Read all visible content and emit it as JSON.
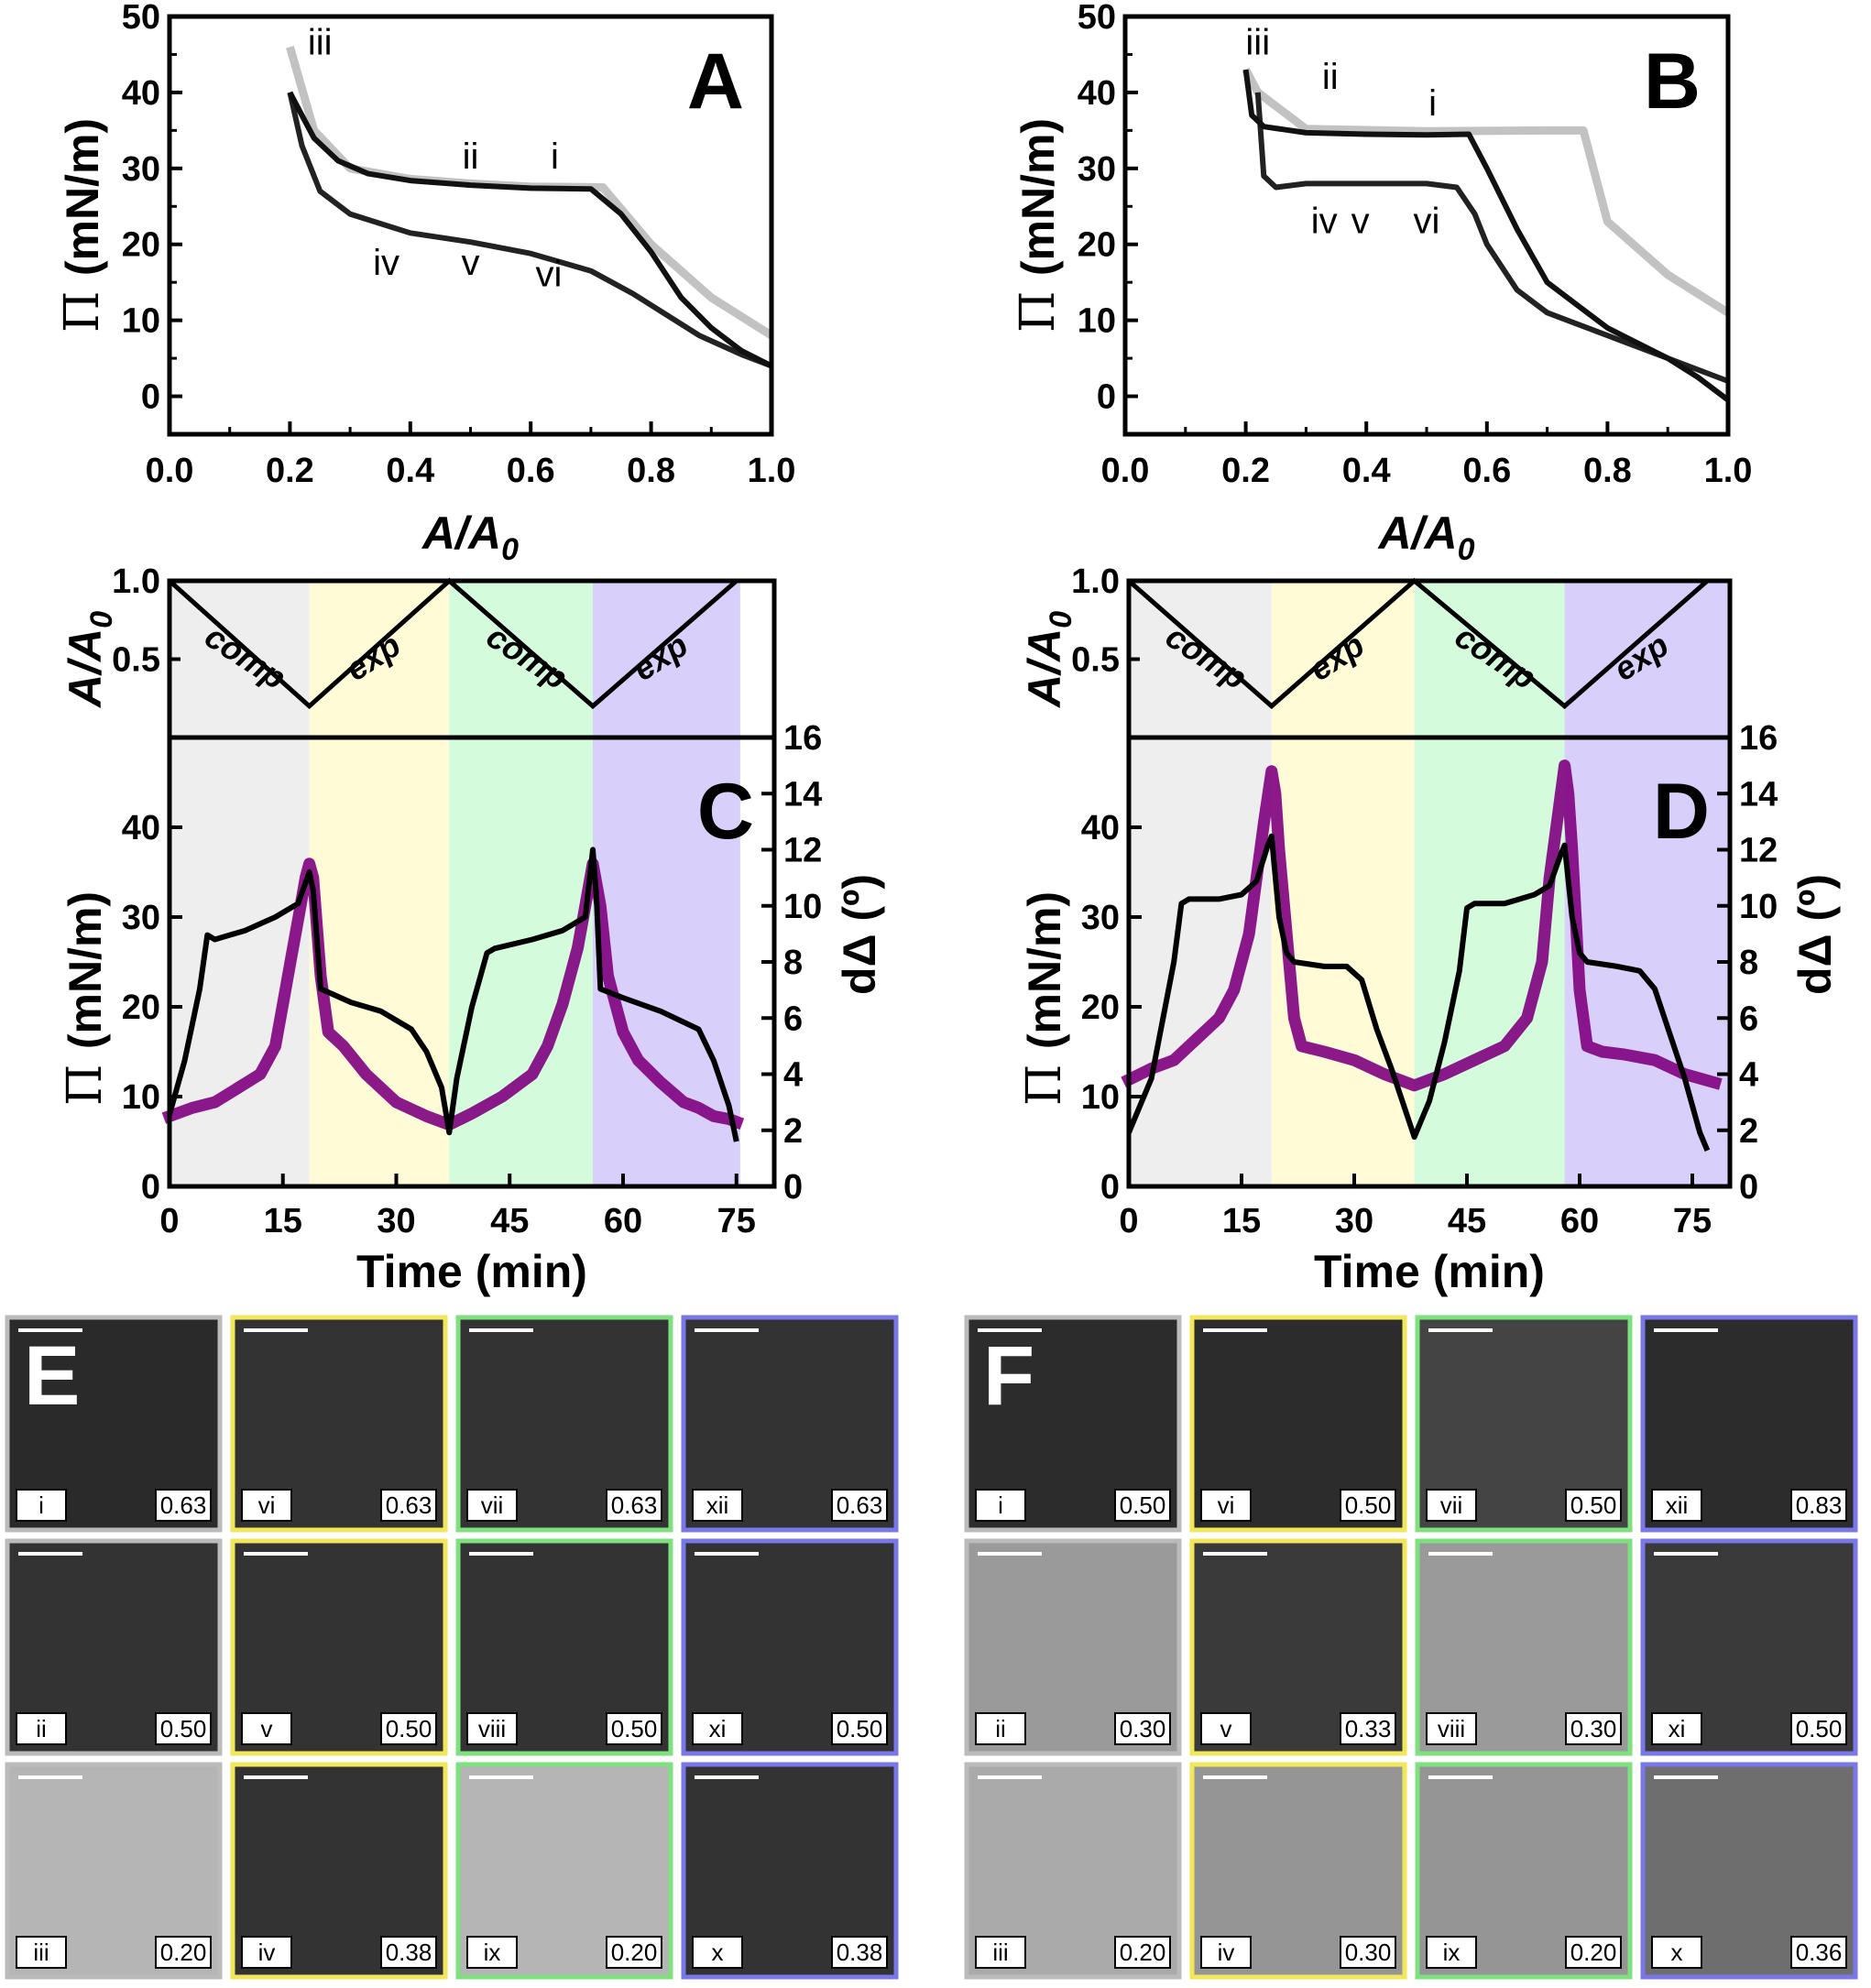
{
  "chart_data": [
    {
      "id": "A",
      "panel_label": "A",
      "type": "line",
      "xlabel": "A/A",
      "xlabel_sub": "0",
      "ylabel_symbol": "Π",
      "ylabel": "(mN/m)",
      "xlim": [
        0.0,
        1.0
      ],
      "ylim": [
        -5,
        50
      ],
      "xticks": [
        "0.0",
        "0.2",
        "0.4",
        "0.6",
        "0.8",
        "1.0"
      ],
      "yticks": [
        "0",
        "10",
        "20",
        "30",
        "40",
        "50"
      ],
      "annotations": [
        {
          "text": "iii",
          "x": 0.25,
          "y": 45
        },
        {
          "text": "ii",
          "x": 0.5,
          "y": 30
        },
        {
          "text": "i",
          "x": 0.64,
          "y": 30
        },
        {
          "text": "iv",
          "x": 0.36,
          "y": 16
        },
        {
          "text": "v",
          "x": 0.5,
          "y": 16
        },
        {
          "text": "vi",
          "x": 0.63,
          "y": 14.5
        }
      ],
      "series": [
        {
          "x": [
            1.0,
            0.95,
            0.9,
            0.85,
            0.8,
            0.75,
            0.7,
            0.6,
            0.5,
            0.4,
            0.33,
            0.28,
            0.24,
            0.22,
            0.2
          ],
          "y": [
            4,
            6,
            9,
            13,
            19,
            24,
            27.3,
            27.4,
            27.8,
            28.4,
            29.3,
            31,
            34,
            37,
            40
          ]
        },
        {
          "x": [
            0.2,
            0.22,
            0.25,
            0.3,
            0.4,
            0.5,
            0.6,
            0.7,
            0.77,
            0.82,
            0.88,
            0.95,
            1.0
          ],
          "y": [
            40,
            33,
            27,
            24,
            21.5,
            20.3,
            18.8,
            16.5,
            13.5,
            11,
            8,
            5.5,
            4
          ]
        },
        {
          "x": [
            1.0,
            0.9,
            0.8,
            0.72,
            0.6,
            0.5,
            0.4,
            0.3,
            0.24,
            0.2
          ],
          "y": [
            8,
            13,
            20,
            27.5,
            27.6,
            28,
            28.6,
            30,
            35,
            46
          ]
        }
      ]
    },
    {
      "id": "B",
      "panel_label": "B",
      "type": "line",
      "xlabel": "A/A",
      "xlabel_sub": "0",
      "ylabel_symbol": "Π",
      "ylabel": "(mN/m)",
      "xlim": [
        0.0,
        1.0
      ],
      "ylim": [
        -5,
        50
      ],
      "xticks": [
        "0.0",
        "0.2",
        "0.4",
        "0.6",
        "0.8",
        "1.0"
      ],
      "yticks": [
        "0",
        "10",
        "20",
        "30",
        "40",
        "50"
      ],
      "annotations": [
        {
          "text": "iii",
          "x": 0.22,
          "y": 45
        },
        {
          "text": "ii",
          "x": 0.34,
          "y": 40.5
        },
        {
          "text": "i",
          "x": 0.51,
          "y": 37
        },
        {
          "text": "iv",
          "x": 0.33,
          "y": 21.5
        },
        {
          "text": "v",
          "x": 0.39,
          "y": 21.5
        },
        {
          "text": "vi",
          "x": 0.5,
          "y": 21.5
        }
      ],
      "series": [
        {
          "x": [
            0.2,
            0.21,
            0.23,
            0.3,
            0.4,
            0.5,
            0.57,
            0.6,
            0.65,
            0.7,
            0.75,
            0.8,
            0.85,
            0.9,
            0.95,
            1.0
          ],
          "y": [
            43,
            37,
            35.5,
            34.7,
            34.5,
            34.4,
            34.5,
            30,
            22,
            15,
            12,
            9,
            7,
            5,
            2.5,
            -0.5
          ]
        },
        {
          "x": [
            0.22,
            0.23,
            0.25,
            0.3,
            0.4,
            0.5,
            0.55,
            0.58,
            0.6,
            0.65,
            0.7,
            0.8,
            0.9,
            1.0
          ],
          "y": [
            40,
            29,
            27.5,
            28,
            28,
            28,
            27.5,
            24,
            20,
            14,
            11,
            8,
            5,
            2
          ]
        },
        {
          "x": [
            1.0,
            0.9,
            0.8,
            0.76,
            0.7,
            0.5,
            0.3,
            0.22,
            0.2
          ],
          "y": [
            11,
            16,
            23,
            35,
            35,
            34.9,
            35.2,
            40,
            43
          ]
        }
      ]
    },
    {
      "id": "C",
      "panel_label": "C",
      "type": "line",
      "xlabel": "Time (min)",
      "ylabel_symbol": "Π",
      "ylabel": "(mN/m)",
      "y2label": "dΔ (º)",
      "xlim": [
        0,
        80
      ],
      "ylim": [
        0,
        50
      ],
      "y2lim": [
        0,
        16
      ],
      "xticks": [
        "0",
        "15",
        "30",
        "45",
        "60",
        "75"
      ],
      "yticks": [
        "0",
        "10",
        "20",
        "30",
        "40"
      ],
      "y2ticks": [
        "0",
        "2",
        "4",
        "6",
        "8",
        "10",
        "12",
        "14",
        "16"
      ],
      "top_ylabel": "A/A",
      "top_ylabel_sub": "0",
      "top_ylim": [
        0.0,
        1.0
      ],
      "top_yticks": [
        "0.5",
        "1.0"
      ],
      "phases": [
        {
          "label": "comp",
          "start": 0,
          "end": 18.5,
          "color": "#eeeeee"
        },
        {
          "label": "exp",
          "start": 18.5,
          "end": 37,
          "color": "#fffbd6"
        },
        {
          "label": "comp",
          "start": 37,
          "end": 56,
          "color": "#d4fbdc"
        },
        {
          "label": "exp",
          "start": 56,
          "end": 75.5,
          "color": "#d8d0fa"
        }
      ],
      "area_trace": {
        "x": [
          0,
          18.5,
          37,
          56,
          75
        ],
        "y": [
          1.0,
          0.2,
          1.0,
          0.2,
          1.0
        ]
      },
      "series": [
        {
          "name": "Π",
          "axis": "left",
          "color": "#000000",
          "x": [
            0,
            2,
            4,
            5,
            6,
            10,
            14,
            17,
            18.5,
            19,
            20,
            24,
            28,
            32,
            34,
            36,
            37,
            38,
            40,
            42,
            43,
            48,
            52,
            55,
            56,
            56.5,
            57,
            60,
            65,
            70,
            72,
            74,
            75
          ],
          "y": [
            8,
            14,
            22,
            28,
            27.5,
            28.5,
            30,
            31.5,
            35,
            33,
            22,
            20.5,
            19.5,
            17.5,
            15,
            11,
            6,
            12,
            20,
            26,
            26.5,
            27.5,
            28.5,
            30,
            37.5,
            32,
            22,
            21,
            19.5,
            17.5,
            14,
            9,
            5
          ]
        },
        {
          "name": "dΔ",
          "axis": "right",
          "color": "#800080",
          "x": [
            0,
            3,
            6,
            9,
            12,
            14,
            15,
            16,
            17,
            18,
            18.5,
            19,
            20,
            21,
            23,
            26,
            30,
            34,
            37,
            40,
            44,
            48,
            50,
            52,
            54,
            55,
            56,
            57,
            58,
            60,
            62,
            65,
            68,
            70,
            72,
            74,
            75
          ],
          "y": [
            2.5,
            2.8,
            3,
            3.5,
            4,
            5,
            6.5,
            8,
            9.5,
            11,
            11.5,
            11,
            7.5,
            5.5,
            5,
            4,
            3,
            2.5,
            2.2,
            2.6,
            3.2,
            4,
            5,
            6.5,
            8.5,
            10,
            11.5,
            10,
            7.5,
            5.5,
            4.5,
            3.7,
            3,
            2.8,
            2.5,
            2.4,
            2.3
          ]
        }
      ]
    },
    {
      "id": "D",
      "panel_label": "D",
      "type": "line",
      "xlabel": "Time (min)",
      "ylabel_symbol": "Π",
      "ylabel": "(mN/m)",
      "y2label": "dΔ (º)",
      "xlim": [
        0,
        80
      ],
      "ylim": [
        0,
        50
      ],
      "y2lim": [
        0,
        16
      ],
      "xticks": [
        "0",
        "15",
        "30",
        "45",
        "60",
        "75"
      ],
      "yticks": [
        "0",
        "10",
        "20",
        "30",
        "40"
      ],
      "y2ticks": [
        "0",
        "2",
        "4",
        "6",
        "8",
        "10",
        "12",
        "14",
        "16"
      ],
      "top_ylabel": "A/A",
      "top_ylabel_sub": "0",
      "top_ylim": [
        0.0,
        1.0
      ],
      "top_yticks": [
        "0.5",
        "1.0"
      ],
      "phases": [
        {
          "label": "comp",
          "start": 0,
          "end": 19,
          "color": "#eeeeee"
        },
        {
          "label": "exp",
          "start": 19,
          "end": 38,
          "color": "#fffbd6"
        },
        {
          "label": "comp",
          "start": 38,
          "end": 58,
          "color": "#d4fbdc"
        },
        {
          "label": "exp",
          "start": 58,
          "end": 80,
          "color": "#d8d0fa"
        }
      ],
      "area_trace": {
        "x": [
          0,
          19,
          38,
          58,
          77
        ],
        "y": [
          1.0,
          0.2,
          1.0,
          0.2,
          1.0
        ]
      },
      "series": [
        {
          "name": "Π",
          "axis": "left",
          "color": "#000000",
          "x": [
            0,
            3,
            6,
            7,
            8,
            12,
            15,
            17,
            18.5,
            19,
            20,
            21,
            22,
            26,
            29,
            31,
            33,
            35,
            38,
            40,
            42,
            44,
            45,
            46,
            50,
            54,
            56,
            57.5,
            58,
            59,
            60,
            61,
            65,
            68,
            70,
            72,
            74,
            76,
            77
          ],
          "y": [
            6,
            12,
            25,
            31.5,
            32,
            32,
            32.5,
            34,
            38,
            39,
            30,
            26,
            25,
            24.5,
            24.5,
            23,
            17.5,
            13,
            5.5,
            9.5,
            16,
            24,
            31,
            31.5,
            31.5,
            32.5,
            33.5,
            37,
            38,
            30,
            26,
            25,
            24.5,
            24,
            22,
            17,
            12,
            6,
            4
          ]
        },
        {
          "name": "dΔ",
          "axis": "right",
          "color": "#800080",
          "x": [
            0,
            3,
            6,
            8,
            10,
            12,
            14,
            16,
            17,
            18,
            19,
            19.5,
            20,
            21,
            22,
            23,
            26,
            30,
            34,
            38,
            42,
            46,
            50,
            53,
            55,
            56,
            57,
            58,
            58.5,
            59,
            60,
            61,
            63,
            66,
            70,
            74,
            78
          ],
          "y": [
            3.8,
            4.2,
            4.5,
            5,
            5.5,
            6,
            7,
            9,
            11,
            13,
            14.8,
            14,
            12,
            9,
            6,
            5,
            4.8,
            4.5,
            4,
            3.6,
            4,
            4.5,
            5,
            6,
            8,
            11,
            13,
            15,
            14,
            12,
            7,
            5,
            4.8,
            4.7,
            4.5,
            4,
            3.7
          ]
        }
      ]
    }
  ],
  "micrographs": {
    "E": {
      "label": "E",
      "rows": [
        [
          {
            "id": "i",
            "value": "0.63"
          },
          {
            "id": "vi",
            "value": "0.63"
          },
          {
            "id": "vii",
            "value": "0.63"
          },
          {
            "id": "xii",
            "value": "0.63"
          }
        ],
        [
          {
            "id": "ii",
            "value": "0.50"
          },
          {
            "id": "v",
            "value": "0.50"
          },
          {
            "id": "viii",
            "value": "0.50"
          },
          {
            "id": "xi",
            "value": "0.50"
          }
        ],
        [
          {
            "id": "iii",
            "value": "0.20"
          },
          {
            "id": "iv",
            "value": "0.38"
          },
          {
            "id": "ix",
            "value": "0.20"
          },
          {
            "id": "x",
            "value": "0.38"
          }
        ]
      ]
    },
    "F": {
      "label": "F",
      "rows": [
        [
          {
            "id": "i",
            "value": "0.50"
          },
          {
            "id": "vi",
            "value": "0.50"
          },
          {
            "id": "vii",
            "value": "0.50"
          },
          {
            "id": "xii",
            "value": "0.83"
          }
        ],
        [
          {
            "id": "ii",
            "value": "0.30"
          },
          {
            "id": "v",
            "value": "0.33"
          },
          {
            "id": "viii",
            "value": "0.30"
          },
          {
            "id": "xi",
            "value": "0.50"
          }
        ],
        [
          {
            "id": "iii",
            "value": "0.20"
          },
          {
            "id": "iv",
            "value": "0.30"
          },
          {
            "id": "ix",
            "value": "0.20"
          },
          {
            "id": "x",
            "value": "0.36"
          }
        ]
      ]
    },
    "column_border_colors": [
      "#bbbbbb",
      "#f2e65a",
      "#7fe07f",
      "#7a78e8"
    ]
  }
}
